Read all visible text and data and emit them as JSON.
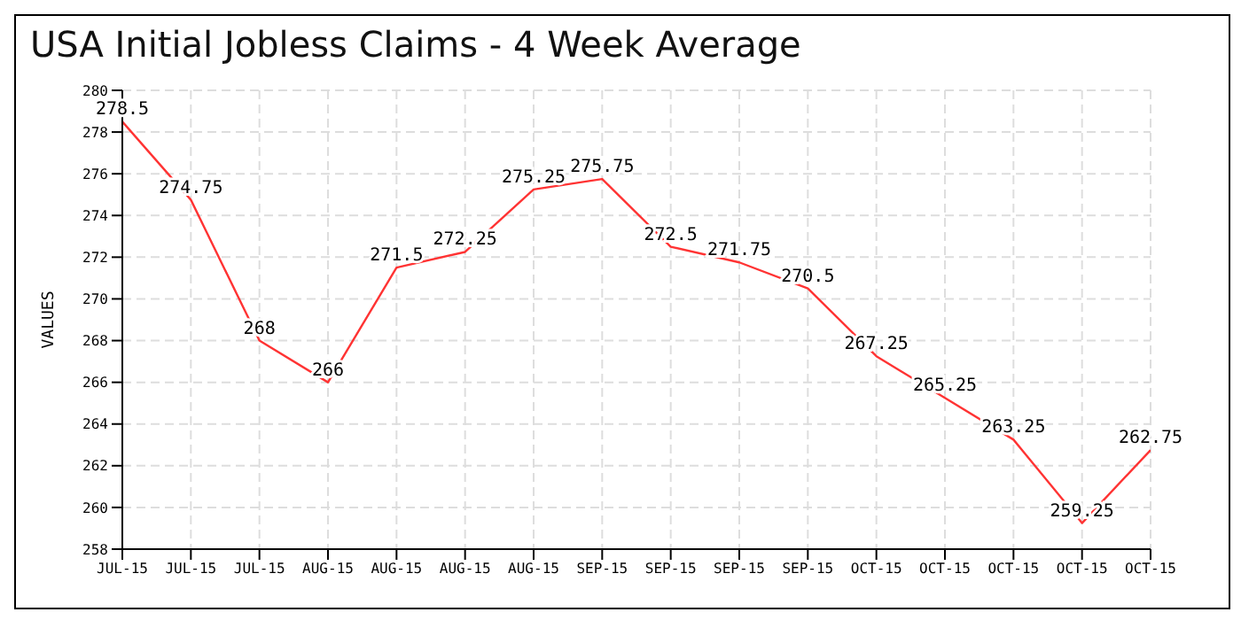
{
  "chart_data": {
    "type": "line",
    "title": "USA Initial Jobless Claims - 4 Week Average",
    "ylabel": "VALUES",
    "categories": [
      "JUL-15",
      "JUL-15",
      "JUL-15",
      "AUG-15",
      "AUG-15",
      "AUG-15",
      "AUG-15",
      "SEP-15",
      "SEP-15",
      "SEP-15",
      "SEP-15",
      "OCT-15",
      "OCT-15",
      "OCT-15",
      "OCT-15",
      "OCT-15"
    ],
    "series": [
      {
        "color": "#ff3333",
        "values": [
          278.5,
          274.75,
          268,
          266,
          271.5,
          272.25,
          275.25,
          275.75,
          272.5,
          271.75,
          270.5,
          267.25,
          265.25,
          263.25,
          259.25,
          262.75
        ]
      }
    ],
    "ylim": [
      258,
      280
    ],
    "yticks": [
      258,
      260,
      262,
      264,
      266,
      268,
      270,
      272,
      274,
      276,
      278,
      280
    ],
    "grid": true,
    "legend": false,
    "marker": "none",
    "line_style": "solid",
    "data_labels": true
  }
}
